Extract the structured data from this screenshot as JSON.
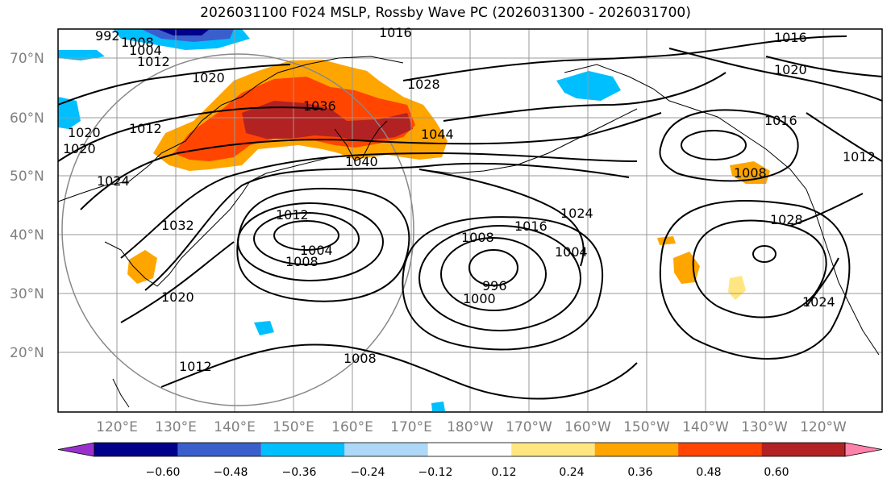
{
  "title": "2026031100 F024 MSLP, Rossby Wave PC (2026031300 - 2026031700)",
  "lat_labels": [
    "70°N",
    "60°N",
    "50°N",
    "40°N",
    "30°N",
    "20°N"
  ],
  "lon_labels": [
    "120°E",
    "130°E",
    "140°E",
    "150°E",
    "160°E",
    "170°E",
    "180°W",
    "170°W",
    "160°W",
    "150°W",
    "140°W",
    "130°W",
    "120°W"
  ],
  "contour_labels": [
    "1016",
    "1028",
    "1036",
    "1044",
    "1040",
    "1020",
    "1012",
    "1024",
    "1032",
    "1012",
    "1004",
    "1008",
    "1008",
    "1016",
    "1024",
    "1004",
    "996",
    "1000",
    "1020",
    "1012",
    "1008",
    "1016",
    "1020",
    "1016",
    "1012",
    "1008",
    "1028",
    "1024",
    "992",
    "1004",
    "1008",
    "1012",
    "1020",
    "1020"
  ],
  "colorbar": {
    "ticks": [
      "−0.60",
      "−0.48",
      "−0.36",
      "−0.24",
      "−0.12",
      "0.12",
      "0.24",
      "0.36",
      "0.48",
      "0.60"
    ],
    "colors": [
      "#9932cc",
      "#00008b",
      "#3a5fcd",
      "#00bfff",
      "#add8f7",
      "#ffffff",
      "#ffe680",
      "#ffa500",
      "#ff4500",
      "#b22222",
      "#ff82ab"
    ]
  }
}
